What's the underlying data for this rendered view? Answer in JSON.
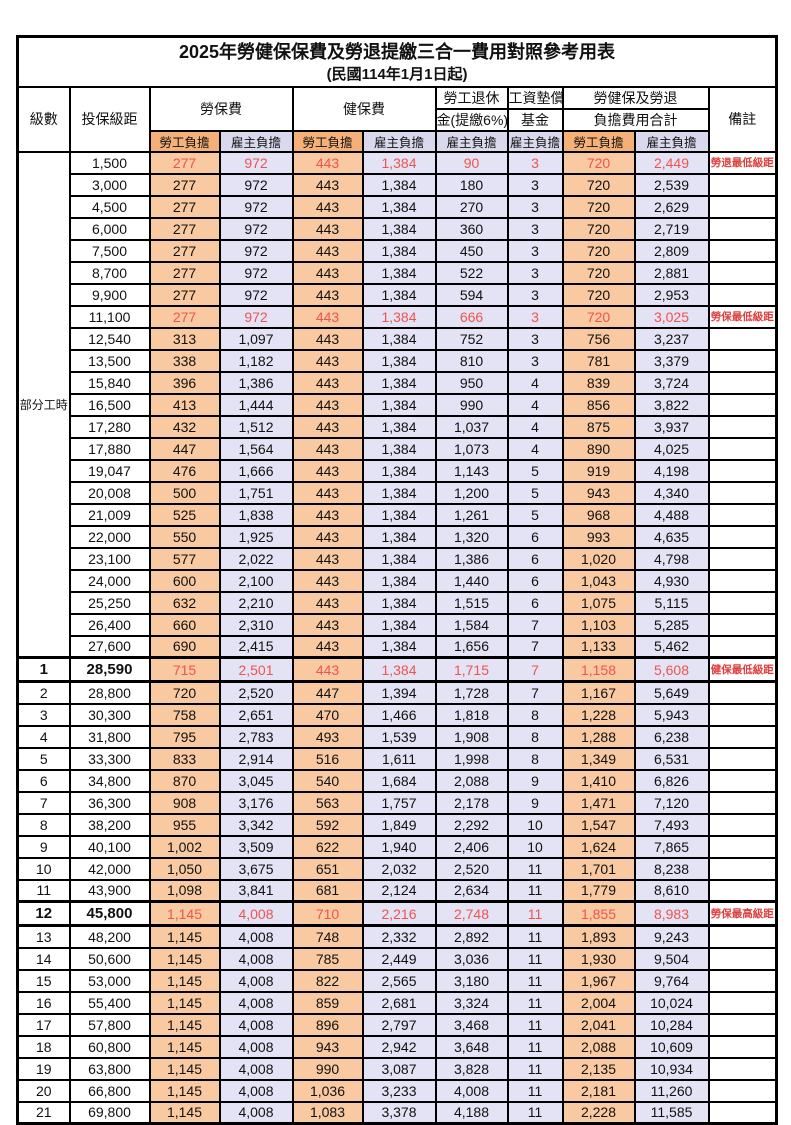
{
  "page": {
    "title": "2025年勞健保保費及勞退提繳三合一費用對照參考用表",
    "subtitle": "(民國114年1月1日起)"
  },
  "header": {
    "level": "級數",
    "bracket": "投保級距",
    "labor_insurance": "勞保費",
    "health_insurance": "健保費",
    "pension_line1": "勞工退休",
    "pension_line2": "金(提繳6%)",
    "wage_fund_line1": "工資墊償",
    "wage_fund_line2": "基金",
    "total_line1": "勞健保及勞退",
    "total_line2": "負擔費用合計",
    "employee": "勞工負擔",
    "employer": "雇主負擔",
    "remark": "備註"
  },
  "part_time_label": "部分工時",
  "colors": {
    "employee_subheader": "#F4B077",
    "employee_cell": "#F9CAA1",
    "employer_subheader": "#D9D9EE",
    "employer_cell": "#E3E3F5",
    "highlight_red": "#EF544C",
    "remark_red": "#E03E3E",
    "border": "#000000"
  },
  "table": {
    "part_time_rowspan": 23,
    "rows": [
      [
        "",
        "1,500",
        "277",
        "972",
        "443",
        "1,384",
        "90",
        "3",
        "720",
        "2,449",
        "勞退最低級距",
        "r"
      ],
      [
        "",
        "3,000",
        "277",
        "972",
        "443",
        "1,384",
        "180",
        "3",
        "720",
        "2,539",
        "",
        ""
      ],
      [
        "",
        "4,500",
        "277",
        "972",
        "443",
        "1,384",
        "270",
        "3",
        "720",
        "2,629",
        "",
        ""
      ],
      [
        "",
        "6,000",
        "277",
        "972",
        "443",
        "1,384",
        "360",
        "3",
        "720",
        "2,719",
        "",
        ""
      ],
      [
        "",
        "7,500",
        "277",
        "972",
        "443",
        "1,384",
        "450",
        "3",
        "720",
        "2,809",
        "",
        ""
      ],
      [
        "",
        "8,700",
        "277",
        "972",
        "443",
        "1,384",
        "522",
        "3",
        "720",
        "2,881",
        "",
        ""
      ],
      [
        "",
        "9,900",
        "277",
        "972",
        "443",
        "1,384",
        "594",
        "3",
        "720",
        "2,953",
        "",
        ""
      ],
      [
        "",
        "11,100",
        "277",
        "972",
        "443",
        "1,384",
        "666",
        "3",
        "720",
        "3,025",
        "勞保最低級距",
        "r"
      ],
      [
        "",
        "12,540",
        "313",
        "1,097",
        "443",
        "1,384",
        "752",
        "3",
        "756",
        "3,237",
        "",
        ""
      ],
      [
        "",
        "13,500",
        "338",
        "1,182",
        "443",
        "1,384",
        "810",
        "3",
        "781",
        "3,379",
        "",
        ""
      ],
      [
        "",
        "15,840",
        "396",
        "1,386",
        "443",
        "1,384",
        "950",
        "4",
        "839",
        "3,724",
        "",
        ""
      ],
      [
        "",
        "16,500",
        "413",
        "1,444",
        "443",
        "1,384",
        "990",
        "4",
        "856",
        "3,822",
        "",
        ""
      ],
      [
        "",
        "17,280",
        "432",
        "1,512",
        "443",
        "1,384",
        "1,037",
        "4",
        "875",
        "3,937",
        "",
        ""
      ],
      [
        "",
        "17,880",
        "447",
        "1,564",
        "443",
        "1,384",
        "1,073",
        "4",
        "890",
        "4,025",
        "",
        ""
      ],
      [
        "",
        "19,047",
        "476",
        "1,666",
        "443",
        "1,384",
        "1,143",
        "5",
        "919",
        "4,198",
        "",
        ""
      ],
      [
        "",
        "20,008",
        "500",
        "1,751",
        "443",
        "1,384",
        "1,200",
        "5",
        "943",
        "4,340",
        "",
        ""
      ],
      [
        "",
        "21,009",
        "525",
        "1,838",
        "443",
        "1,384",
        "1,261",
        "5",
        "968",
        "4,488",
        "",
        ""
      ],
      [
        "",
        "22,000",
        "550",
        "1,925",
        "443",
        "1,384",
        "1,320",
        "6",
        "993",
        "4,635",
        "",
        ""
      ],
      [
        "",
        "23,100",
        "577",
        "2,022",
        "443",
        "1,384",
        "1,386",
        "6",
        "1,020",
        "4,798",
        "",
        ""
      ],
      [
        "",
        "24,000",
        "600",
        "2,100",
        "443",
        "1,384",
        "1,440",
        "6",
        "1,043",
        "4,930",
        "",
        ""
      ],
      [
        "",
        "25,250",
        "632",
        "2,210",
        "443",
        "1,384",
        "1,515",
        "6",
        "1,075",
        "5,115",
        "",
        ""
      ],
      [
        "",
        "26,400",
        "660",
        "2,310",
        "443",
        "1,384",
        "1,584",
        "7",
        "1,103",
        "5,285",
        "",
        ""
      ],
      [
        "",
        "27,600",
        "690",
        "2,415",
        "443",
        "1,384",
        "1,656",
        "7",
        "1,133",
        "5,462",
        "",
        ""
      ],
      [
        "1",
        "28,590",
        "715",
        "2,501",
        "443",
        "1,384",
        "1,715",
        "7",
        "1,158",
        "5,608",
        "健保最低級距",
        "rb"
      ],
      [
        "2",
        "28,800",
        "720",
        "2,520",
        "447",
        "1,394",
        "1,728",
        "7",
        "1,167",
        "5,649",
        "",
        ""
      ],
      [
        "3",
        "30,300",
        "758",
        "2,651",
        "470",
        "1,466",
        "1,818",
        "8",
        "1,228",
        "5,943",
        "",
        ""
      ],
      [
        "4",
        "31,800",
        "795",
        "2,783",
        "493",
        "1,539",
        "1,908",
        "8",
        "1,288",
        "6,238",
        "",
        ""
      ],
      [
        "5",
        "33,300",
        "833",
        "2,914",
        "516",
        "1,611",
        "1,998",
        "8",
        "1,349",
        "6,531",
        "",
        ""
      ],
      [
        "6",
        "34,800",
        "870",
        "3,045",
        "540",
        "1,684",
        "2,088",
        "9",
        "1,410",
        "6,826",
        "",
        ""
      ],
      [
        "7",
        "36,300",
        "908",
        "3,176",
        "563",
        "1,757",
        "2,178",
        "9",
        "1,471",
        "7,120",
        "",
        ""
      ],
      [
        "8",
        "38,200",
        "955",
        "3,342",
        "592",
        "1,849",
        "2,292",
        "10",
        "1,547",
        "7,493",
        "",
        ""
      ],
      [
        "9",
        "40,100",
        "1,002",
        "3,509",
        "622",
        "1,940",
        "2,406",
        "10",
        "1,624",
        "7,865",
        "",
        ""
      ],
      [
        "10",
        "42,000",
        "1,050",
        "3,675",
        "651",
        "2,032",
        "2,520",
        "11",
        "1,701",
        "8,238",
        "",
        ""
      ],
      [
        "11",
        "43,900",
        "1,098",
        "3,841",
        "681",
        "2,124",
        "2,634",
        "11",
        "1,779",
        "8,610",
        "",
        ""
      ],
      [
        "12",
        "45,800",
        "1,145",
        "4,008",
        "710",
        "2,216",
        "2,748",
        "11",
        "1,855",
        "8,983",
        "勞保最高級距",
        "rb"
      ],
      [
        "13",
        "48,200",
        "1,145",
        "4,008",
        "748",
        "2,332",
        "2,892",
        "11",
        "1,893",
        "9,243",
        "",
        ""
      ],
      [
        "14",
        "50,600",
        "1,145",
        "4,008",
        "785",
        "2,449",
        "3,036",
        "11",
        "1,930",
        "9,504",
        "",
        ""
      ],
      [
        "15",
        "53,000",
        "1,145",
        "4,008",
        "822",
        "2,565",
        "3,180",
        "11",
        "1,967",
        "9,764",
        "",
        ""
      ],
      [
        "16",
        "55,400",
        "1,145",
        "4,008",
        "859",
        "2,681",
        "3,324",
        "11",
        "2,004",
        "10,024",
        "",
        ""
      ],
      [
        "17",
        "57,800",
        "1,145",
        "4,008",
        "896",
        "2,797",
        "3,468",
        "11",
        "2,041",
        "10,284",
        "",
        ""
      ],
      [
        "18",
        "60,800",
        "1,145",
        "4,008",
        "943",
        "2,942",
        "3,648",
        "11",
        "2,088",
        "10,609",
        "",
        ""
      ],
      [
        "19",
        "63,800",
        "1,145",
        "4,008",
        "990",
        "3,087",
        "3,828",
        "11",
        "2,135",
        "10,934",
        "",
        ""
      ],
      [
        "20",
        "66,800",
        "1,145",
        "4,008",
        "1,036",
        "3,233",
        "4,008",
        "11",
        "2,181",
        "11,260",
        "",
        ""
      ],
      [
        "21",
        "69,800",
        "1,145",
        "4,008",
        "1,083",
        "3,378",
        "4,188",
        "11",
        "2,228",
        "11,585",
        "",
        ""
      ]
    ]
  }
}
